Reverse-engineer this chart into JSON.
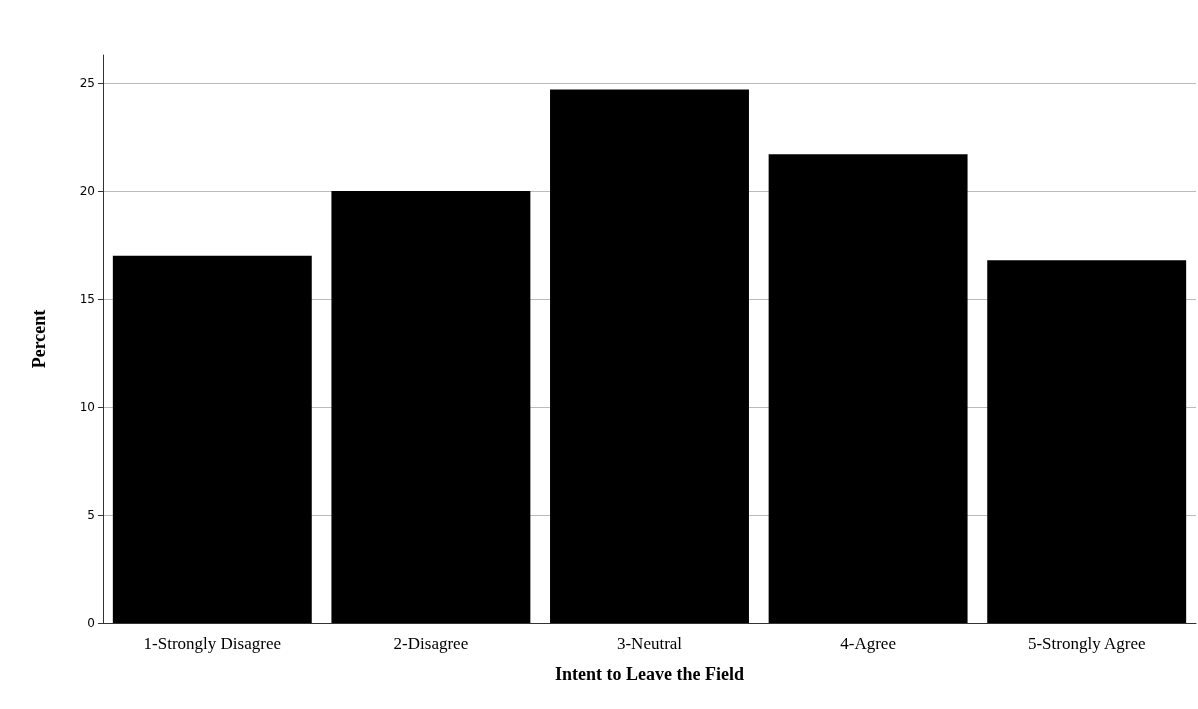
{
  "chart_data": {
    "type": "bar",
    "xlabel": "Intent to Leave the Field",
    "ylabel": "Percent",
    "categories": [
      "1-Strongly Disagree",
      "2-Disagree",
      "3-Neutral",
      "4-Agree",
      "5-Strongly Agree"
    ],
    "values": [
      17.0,
      20.0,
      24.7,
      21.7,
      16.8
    ],
    "color": "#000000",
    "ylim": [
      0,
      26.3
    ],
    "yticks": [
      0,
      5,
      10,
      15,
      20,
      25
    ],
    "grid": "y"
  }
}
